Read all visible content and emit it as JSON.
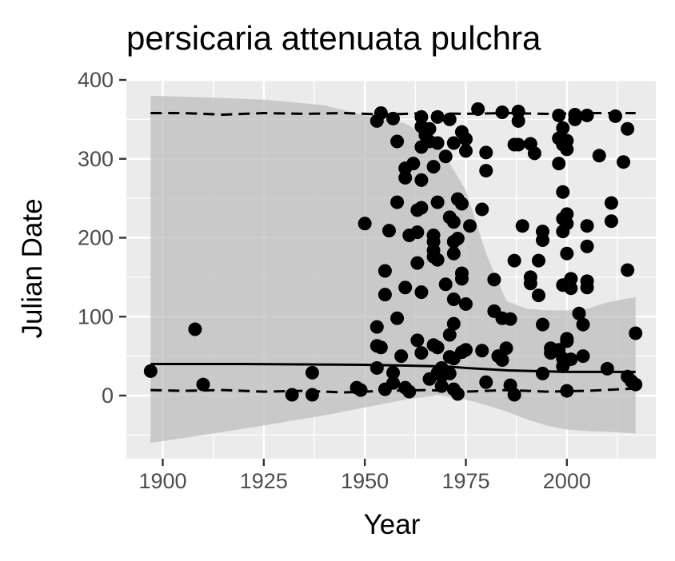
{
  "chart_data": {
    "type": "scatter",
    "title": "persicaria attenuata pulchra",
    "xlabel": "Year",
    "ylabel": "Julian Date",
    "xlim": [
      1891,
      2022
    ],
    "ylim": [
      -80,
      400
    ],
    "xticks": [
      1900,
      1925,
      1950,
      1975,
      2000
    ],
    "yticks": [
      0,
      100,
      200,
      300,
      400
    ],
    "grid": true,
    "legend": "none",
    "colors": {
      "panel": "#ebebeb",
      "grid": "#ffffff",
      "points": "#000000",
      "ribbon": "#bdbdbd",
      "tick_text": "#4d4d4d"
    },
    "points": [
      [
        1897,
        31
      ],
      [
        1908,
        84
      ],
      [
        1910,
        14
      ],
      [
        1932,
        1
      ],
      [
        1937,
        29
      ],
      [
        1937,
        1
      ],
      [
        1948,
        10
      ],
      [
        1949,
        7
      ],
      [
        1950,
        218
      ],
      [
        1953,
        63
      ],
      [
        1953,
        348
      ],
      [
        1953,
        87
      ],
      [
        1953,
        35
      ],
      [
        1954,
        61
      ],
      [
        1954,
        358
      ],
      [
        1955,
        8
      ],
      [
        1955,
        158
      ],
      [
        1955,
        128
      ],
      [
        1956,
        209
      ],
      [
        1957,
        29
      ],
      [
        1957,
        351
      ],
      [
        1957,
        16
      ],
      [
        1958,
        98
      ],
      [
        1958,
        322
      ],
      [
        1958,
        245
      ],
      [
        1959,
        50
      ],
      [
        1960,
        10
      ],
      [
        1960,
        276
      ],
      [
        1960,
        288
      ],
      [
        1960,
        137
      ],
      [
        1961,
        5
      ],
      [
        1961,
        203
      ],
      [
        1962,
        294
      ],
      [
        1963,
        168
      ],
      [
        1963,
        70
      ],
      [
        1963,
        207
      ],
      [
        1963,
        235
      ],
      [
        1964,
        273
      ],
      [
        1964,
        54
      ],
      [
        1964,
        131
      ],
      [
        1964,
        238
      ],
      [
        1964,
        353
      ],
      [
        1964,
        341
      ],
      [
        1964,
        315
      ],
      [
        1965,
        330
      ],
      [
        1966,
        21
      ],
      [
        1966,
        338
      ],
      [
        1966,
        322
      ],
      [
        1967,
        290
      ],
      [
        1967,
        203
      ],
      [
        1967,
        195
      ],
      [
        1967,
        184
      ],
      [
        1967,
        176
      ],
      [
        1967,
        64
      ],
      [
        1968,
        245
      ],
      [
        1968,
        29
      ],
      [
        1968,
        353
      ],
      [
        1968,
        320
      ],
      [
        1968,
        172
      ],
      [
        1968,
        61
      ],
      [
        1969,
        12
      ],
      [
        1969,
        35
      ],
      [
        1969,
        25
      ],
      [
        1970,
        303
      ],
      [
        1970,
        141
      ],
      [
        1971,
        77
      ],
      [
        1971,
        49
      ],
      [
        1971,
        28
      ],
      [
        1971,
        350
      ],
      [
        1971,
        226
      ],
      [
        1972,
        8
      ],
      [
        1972,
        195
      ],
      [
        1972,
        180
      ],
      [
        1972,
        91
      ],
      [
        1972,
        47
      ],
      [
        1972,
        220
      ],
      [
        1972,
        320
      ],
      [
        1972,
        122
      ],
      [
        1973,
        2
      ],
      [
        1973,
        199
      ],
      [
        1973,
        249
      ],
      [
        1974,
        55
      ],
      [
        1974,
        334
      ],
      [
        1974,
        243
      ],
      [
        1974,
        155
      ],
      [
        1974,
        148
      ],
      [
        1975,
        325
      ],
      [
        1975,
        116
      ],
      [
        1975,
        310
      ],
      [
        1975,
        58
      ],
      [
        1976,
        215
      ],
      [
        1978,
        363
      ],
      [
        1979,
        236
      ],
      [
        1979,
        57
      ],
      [
        1980,
        17
      ],
      [
        1980,
        308
      ],
      [
        1980,
        285
      ],
      [
        1982,
        147
      ],
      [
        1982,
        107
      ],
      [
        1983,
        50
      ],
      [
        1984,
        359
      ],
      [
        1984,
        98
      ],
      [
        1984,
        45
      ],
      [
        1985,
        60
      ],
      [
        1986,
        97
      ],
      [
        1986,
        13
      ],
      [
        1987,
        318
      ],
      [
        1987,
        171
      ],
      [
        1987,
        1
      ],
      [
        1988,
        348
      ],
      [
        1988,
        360
      ],
      [
        1988,
        318
      ],
      [
        1989,
        215
      ],
      [
        1991,
        150
      ],
      [
        1991,
        319
      ],
      [
        1991,
        142
      ],
      [
        1992,
        307
      ],
      [
        1993,
        127
      ],
      [
        1993,
        171
      ],
      [
        1994,
        90
      ],
      [
        1994,
        197
      ],
      [
        1994,
        208
      ],
      [
        1994,
        28
      ],
      [
        1996,
        60
      ],
      [
        1996,
        54
      ],
      [
        1998,
        355
      ],
      [
        1998,
        326
      ],
      [
        1998,
        294
      ],
      [
        1998,
        58
      ],
      [
        1999,
        258
      ],
      [
        1999,
        140
      ],
      [
        1999,
        47
      ],
      [
        1999,
        224
      ],
      [
        1999,
        208
      ],
      [
        1999,
        339
      ],
      [
        1999,
        37
      ],
      [
        1999,
        318
      ],
      [
        2000,
        312
      ],
      [
        2000,
        230
      ],
      [
        2000,
        180
      ],
      [
        2000,
        72
      ],
      [
        2000,
        69
      ],
      [
        2000,
        6
      ],
      [
        2000,
        218
      ],
      [
        2000,
        323
      ],
      [
        2001,
        136
      ],
      [
        2001,
        148
      ],
      [
        2001,
        46
      ],
      [
        2002,
        350
      ],
      [
        2002,
        356
      ],
      [
        2003,
        104
      ],
      [
        2004,
        90
      ],
      [
        2004,
        50
      ],
      [
        2005,
        355
      ],
      [
        2005,
        215
      ],
      [
        2005,
        189
      ],
      [
        2005,
        145
      ],
      [
        2005,
        137
      ],
      [
        2008,
        304
      ],
      [
        2010,
        34
      ],
      [
        2011,
        244
      ],
      [
        2011,
        221
      ],
      [
        2012,
        354
      ],
      [
        2014,
        296
      ],
      [
        2015,
        159
      ],
      [
        2015,
        338
      ],
      [
        2015,
        24
      ],
      [
        2016,
        18
      ],
      [
        2017,
        14
      ],
      [
        2017,
        79
      ]
    ],
    "series": [
      {
        "values": [
          [
            1897,
            40
          ],
          [
            1920,
            40
          ],
          [
            1950,
            39
          ],
          [
            1970,
            37
          ],
          [
            1975,
            35
          ],
          [
            1985,
            32
          ],
          [
            2000,
            30
          ],
          [
            2017,
            30
          ]
        ]
      },
      {
        "values": [
          [
            1897,
            358
          ],
          [
            1905,
            358
          ],
          [
            1915,
            356
          ],
          [
            1925,
            358
          ],
          [
            1935,
            357
          ],
          [
            1945,
            358
          ],
          [
            1955,
            356
          ],
          [
            1965,
            358
          ],
          [
            1975,
            357
          ],
          [
            1985,
            358
          ],
          [
            1995,
            357
          ],
          [
            2005,
            358
          ],
          [
            2017,
            358
          ]
        ]
      },
      {
        "values": [
          [
            1897,
            7
          ],
          [
            1905,
            6
          ],
          [
            1915,
            7
          ],
          [
            1925,
            5
          ],
          [
            1935,
            6
          ],
          [
            1945,
            4
          ],
          [
            1955,
            6
          ],
          [
            1965,
            7
          ],
          [
            1975,
            5
          ],
          [
            1985,
            7
          ],
          [
            1995,
            5
          ],
          [
            2005,
            6
          ],
          [
            2017,
            9
          ]
        ]
      }
    ],
    "band": {
      "x": [
        1897,
        1910,
        1925,
        1940,
        1950,
        1960,
        1968,
        1975,
        1980,
        1985,
        1990,
        1995,
        2000,
        2005,
        2010,
        2017
      ],
      "upper": [
        380,
        378,
        375,
        368,
        355,
        345,
        320,
        260,
        180,
        120,
        110,
        108,
        108,
        110,
        118,
        125
      ],
      "lower": [
        -60,
        -50,
        -38,
        -25,
        -15,
        -5,
        0,
        -5,
        -12,
        -20,
        -30,
        -38,
        -43,
        -45,
        -46,
        -48
      ]
    }
  }
}
